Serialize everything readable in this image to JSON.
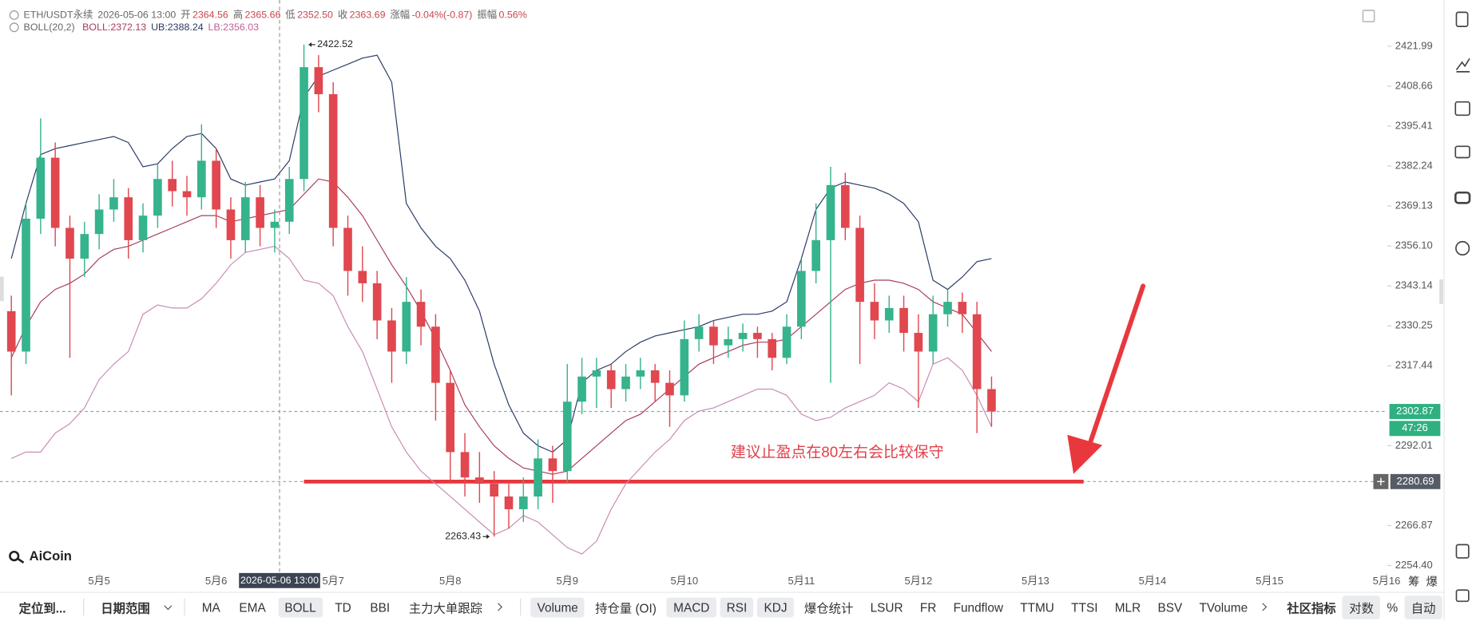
{
  "legend": {
    "symbol": "ETH/USDT永续",
    "time": "2026-05-06 13:00",
    "fields": [
      {
        "label": "开",
        "value": "2364.56"
      },
      {
        "label": "高",
        "value": "2365.66"
      },
      {
        "label": "低",
        "value": "2352.50"
      },
      {
        "label": "收",
        "value": "2363.69"
      },
      {
        "label": "涨幅",
        "value": "-0.04%(-0.87)"
      },
      {
        "label": "振幅",
        "value": "0.56%"
      }
    ]
  },
  "boll_legend": {
    "name": "BOLL(20,2)",
    "items": [
      {
        "text": "BOLL:2372.13",
        "color": "#a83c5a"
      },
      {
        "text": "UB:2388.24",
        "color": "#2b3a67"
      },
      {
        "text": "LB:2356.03",
        "color": "#c0609a"
      }
    ]
  },
  "chart_data": {
    "type": "candlestick",
    "log_scale": true,
    "grid": false,
    "xlim": [
      4.153,
      16.008
    ],
    "xticks": [
      {
        "value": 5,
        "label": "5月5"
      },
      {
        "value": 6,
        "label": "5月6"
      },
      {
        "value": 7,
        "label": "5月7"
      },
      {
        "value": 8,
        "label": "5月8"
      },
      {
        "value": 9,
        "label": "5月9"
      },
      {
        "value": 10,
        "label": "5月10"
      },
      {
        "value": 11,
        "label": "5月11"
      },
      {
        "value": 12,
        "label": "5月12"
      },
      {
        "value": 13,
        "label": "5月13"
      },
      {
        "value": 14,
        "label": "5月14"
      },
      {
        "value": 15,
        "label": "5月15"
      },
      {
        "value": 16,
        "label": "5月16"
      }
    ],
    "ylim": [
      2251.2,
      2437.5
    ],
    "yticks": [
      {
        "value": 2254.4,
        "label": "2254.40"
      },
      2266.87,
      2292.01,
      2317.44,
      2330.25,
      2343.14,
      {
        "value": 2356.1,
        "label": "2356.10"
      },
      2369.13,
      2382.24,
      2395.41,
      2408.66,
      2421.99
    ],
    "up_color": "#35b38c",
    "down_color": "#e0474f",
    "x": [
      4.25,
      4.375,
      4.5,
      4.625,
      4.75,
      4.875,
      5,
      5.125,
      5.25,
      5.375,
      5.5,
      5.625,
      5.75,
      5.875,
      6,
      6.125,
      6.25,
      6.375,
      6.5,
      6.625,
      6.75,
      6.875,
      7,
      7.125,
      7.25,
      7.375,
      7.5,
      7.625,
      7.75,
      7.875,
      8,
      8.125,
      8.25,
      8.375,
      8.5,
      8.625,
      8.75,
      8.875,
      9,
      9.125,
      9.25,
      9.375,
      9.5,
      9.625,
      9.75,
      9.875,
      10,
      10.125,
      10.25,
      10.375,
      10.5,
      10.625,
      10.75,
      10.875,
      11,
      11.125,
      11.25,
      11.375,
      11.5,
      11.625,
      11.75,
      11.875,
      12,
      12.125,
      12.25,
      12.375,
      12.5,
      12.625
    ],
    "open": [
      2335,
      2322,
      2365,
      2385,
      2362,
      2352,
      2360,
      2368,
      2372,
      2358,
      2366,
      2378,
      2374,
      2372,
      2384,
      2368,
      2358,
      2372,
      2362,
      2364,
      2378,
      2415,
      2406,
      2362,
      2348,
      2344,
      2332,
      2322,
      2338,
      2330,
      2312,
      2290,
      2282,
      2280,
      2276,
      2272,
      2276,
      2288,
      2284,
      2306,
      2314,
      2316,
      2310,
      2314,
      2316,
      2312,
      2308,
      2326,
      2330,
      2324,
      2326,
      2328,
      2326,
      2320,
      2330,
      2348,
      2358,
      2376,
      2362,
      2338,
      2332,
      2336,
      2328,
      2322,
      2334,
      2338,
      2334,
      2310
    ],
    "high": [
      2340,
      2370,
      2398,
      2390,
      2366,
      2364,
      2373,
      2378,
      2375,
      2370,
      2383,
      2384,
      2379,
      2396,
      2388,
      2372,
      2377,
      2376,
      2368,
      2382,
      2422.52,
      2419,
      2410,
      2366,
      2356,
      2348,
      2336,
      2346,
      2342,
      2334,
      2316,
      2296,
      2290,
      2284,
      2280,
      2282,
      2294,
      2292,
      2318,
      2320,
      2320,
      2318,
      2318,
      2320,
      2318,
      2316,
      2332,
      2334,
      2332,
      2330,
      2331,
      2330,
      2328,
      2334,
      2352,
      2370,
      2382,
      2380,
      2366,
      2344,
      2340,
      2340,
      2334,
      2340,
      2342,
      2341,
      2338,
      2314
    ],
    "low": [
      2308,
      2318,
      2360,
      2356,
      2320,
      2346,
      2355,
      2364,
      2352,
      2354,
      2362,
      2369,
      2366,
      2368,
      2362,
      2352,
      2354,
      2356,
      2354,
      2360,
      2374,
      2400,
      2356,
      2340,
      2338,
      2326,
      2312,
      2318,
      2324,
      2300,
      2280,
      2276,
      2274,
      2263.43,
      2266,
      2268,
      2272,
      2274,
      2280,
      2302,
      2304,
      2304,
      2306,
      2310,
      2306,
      2298,
      2306,
      2322,
      2318,
      2320,
      2322,
      2320,
      2316,
      2318,
      2326,
      2344,
      2312,
      2358,
      2318,
      2326,
      2328,
      2322,
      2304,
      2318,
      2330,
      2328,
      2296,
      2298
    ],
    "close": [
      2322,
      2365,
      2385,
      2362,
      2352,
      2360,
      2368,
      2372,
      2358,
      2366,
      2378,
      2374,
      2372,
      2384,
      2368,
      2358,
      2372,
      2362,
      2364,
      2378,
      2415,
      2406,
      2362,
      2348,
      2344,
      2332,
      2322,
      2338,
      2330,
      2312,
      2290,
      2282,
      2280,
      2276,
      2272,
      2276,
      2288,
      2284,
      2306,
      2314,
      2316,
      2310,
      2314,
      2316,
      2312,
      2308,
      2326,
      2330,
      2324,
      2326,
      2328,
      2326,
      2320,
      2330,
      2348,
      2358,
      2376,
      2362,
      2338,
      2332,
      2336,
      2328,
      2322,
      2334,
      2338,
      2334,
      2310,
      2302.87
    ],
    "overlays": [
      {
        "color": "#2b3a67",
        "values": [
          2352,
          2370,
          2386,
          2388,
          2389,
          2390,
          2391,
          2392,
          2390,
          2382,
          2383,
          2388,
          2392,
          2393,
          2388,
          2378,
          2376,
          2377,
          2378,
          2384,
          2405,
          2412,
          2414,
          2416,
          2418,
          2419,
          2410,
          2370,
          2362,
          2356,
          2352,
          2345,
          2335,
          2318,
          2305,
          2296,
          2292,
          2290,
          2294,
          2312,
          2316,
          2318,
          2322,
          2325,
          2327,
          2328,
          2329,
          2330,
          2332,
          2333,
          2334,
          2334,
          2335,
          2338,
          2352,
          2368,
          2375,
          2377,
          2376,
          2375,
          2373,
          2370,
          2364,
          2345,
          2342,
          2346,
          2351,
          2352
        ]
      },
      {
        "color": "#a83c5a",
        "values": [
          2320,
          2330,
          2338,
          2342,
          2344,
          2347,
          2352,
          2355,
          2356,
          2358,
          2360,
          2362,
          2364,
          2366,
          2366,
          2364,
          2365,
          2366,
          2367,
          2368,
          2373,
          2378,
          2377,
          2372,
          2366,
          2358,
          2350,
          2343,
          2335,
          2326,
          2316,
          2305,
          2298,
          2292,
          2288,
          2285,
          2284,
          2283,
          2284,
          2288,
          2292,
          2296,
          2300,
          2302,
          2306,
          2310,
          2314,
          2318,
          2320,
          2322,
          2324,
          2325,
          2325,
          2326,
          2330,
          2334,
          2338,
          2342,
          2344,
          2345,
          2345,
          2344,
          2342,
          2338,
          2336,
          2334,
          2328,
          2322
        ]
      },
      {
        "color": "#c98bb6",
        "values": [
          2288,
          2290,
          2290,
          2296,
          2299,
          2304,
          2313,
          2318,
          2322,
          2334,
          2337,
          2336,
          2336,
          2339,
          2344,
          2350,
          2354,
          2355,
          2356,
          2352,
          2345,
          2344,
          2340,
          2330,
          2322,
          2310,
          2298,
          2290,
          2284,
          2280,
          2276,
          2272,
          2268,
          2264,
          2266,
          2270,
          2268,
          2264,
          2260,
          2258,
          2262,
          2272,
          2280,
          2285,
          2290,
          2294,
          2300,
          2303,
          2304,
          2306,
          2308,
          2310,
          2310,
          2308,
          2302,
          2300,
          2301,
          2304,
          2306,
          2308,
          2312,
          2310,
          2306,
          2318,
          2320,
          2316,
          2308,
          2298
        ]
      }
    ],
    "max_marker": {
      "x": 6.75,
      "value": 2422.52
    },
    "min_marker": {
      "x": 8.375,
      "value": 2263.43
    },
    "crosshair": {
      "x": 6.5417,
      "label": "2026-05-06 13:00"
    },
    "current_price": {
      "value": 2302.87,
      "countdown": "47:26",
      "color": "#2fb080"
    },
    "level_line": {
      "value": 2280.69
    },
    "annotation": "建议止盈点在80左右会比较保守"
  },
  "logo": "AiCoin",
  "axis_buttons": [
    "筹",
    "爆"
  ],
  "toolbar": {
    "left": [
      "定位到...",
      "日期范围"
    ],
    "main": [
      {
        "label": "MA"
      },
      {
        "label": "EMA"
      },
      {
        "label": "BOLL",
        "active": true
      },
      {
        "label": "TD"
      },
      {
        "label": "BBI"
      },
      {
        "label": "主力大单跟踪"
      }
    ],
    "sub": [
      {
        "label": "Volume",
        "active": true
      },
      {
        "label": "持仓量 (OI)"
      },
      {
        "label": "MACD",
        "active": true
      },
      {
        "label": "RSI",
        "active": true
      },
      {
        "label": "KDJ",
        "active": true
      },
      {
        "label": "爆仓统计"
      },
      {
        "label": "LSUR"
      },
      {
        "label": "FR"
      },
      {
        "label": "Fundflow"
      },
      {
        "label": "TTMU"
      },
      {
        "label": "TTSI"
      },
      {
        "label": "MLR"
      },
      {
        "label": "BSV"
      },
      {
        "label": "TVolume"
      }
    ],
    "right": [
      {
        "label": "社区指标"
      },
      {
        "label": "对数",
        "active": true
      },
      {
        "label": "%"
      },
      {
        "label": "自动",
        "active": true
      }
    ]
  }
}
